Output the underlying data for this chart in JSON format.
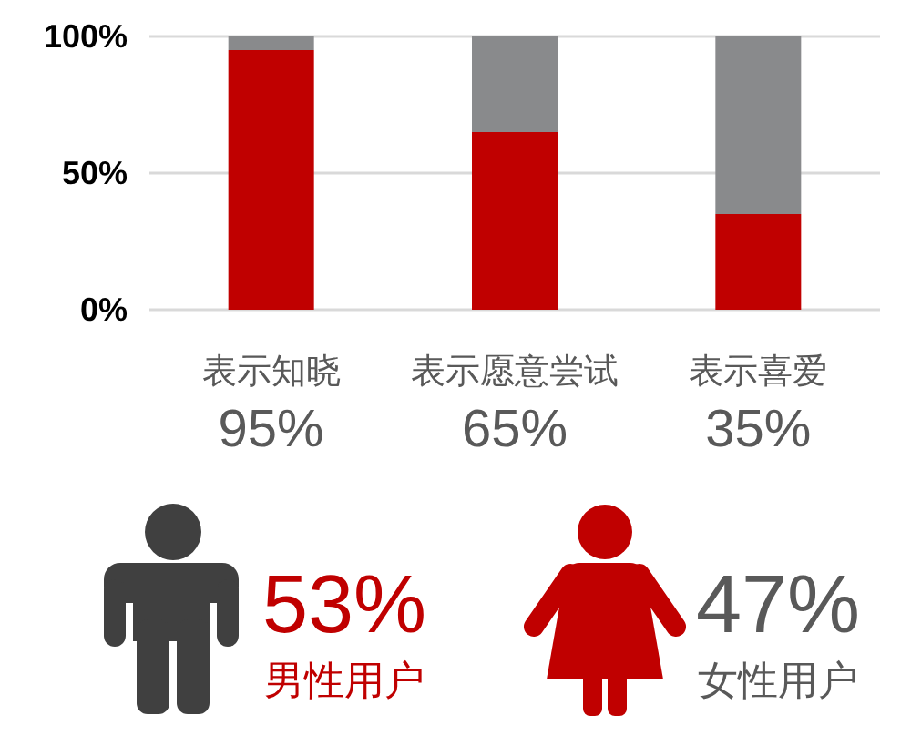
{
  "chart_data": [
    {
      "type": "bar",
      "stacked": true,
      "categories": [
        "表示知晓",
        "表示愿意尝试",
        "表示喜爱"
      ],
      "series": [
        {
          "color": "#c00000",
          "values": [
            95,
            65,
            35
          ],
          "value_labels": [
            "95%",
            "65%",
            "35%"
          ]
        },
        {
          "color": "#898a8c",
          "values": [
            5,
            35,
            65
          ]
        }
      ],
      "ylim": [
        0,
        100
      ],
      "yticks": [
        {
          "value": 0,
          "label": "0%"
        },
        {
          "value": 50,
          "label": "50%"
        },
        {
          "value": 100,
          "label": "100%"
        }
      ],
      "grid": "y"
    },
    {
      "type": "other",
      "annotations": [
        "53%",
        "男性用户",
        "47%",
        "女性用户"
      ],
      "colors": [
        "#c00000",
        "#c00000",
        "#595959",
        "#595959"
      ]
    }
  ]
}
